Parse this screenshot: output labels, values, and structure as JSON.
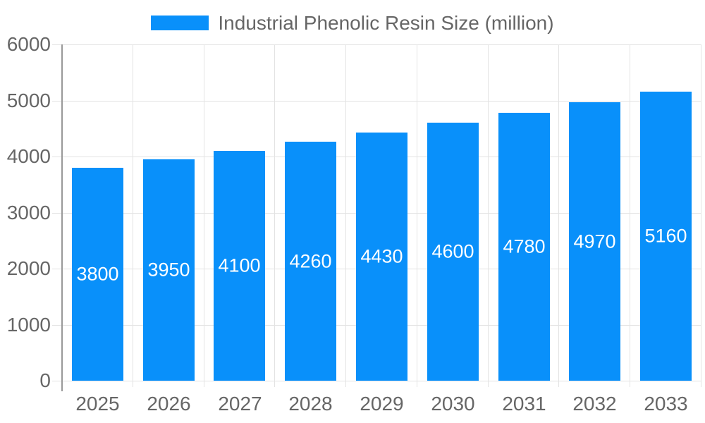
{
  "legend": {
    "label": "Industrial Phenolic Resin Size (million)"
  },
  "colors": {
    "bar": "#0990fa",
    "text": "#666666",
    "grid": "#e3e3e3",
    "axis": "#999999",
    "bar_label": "#ffffff",
    "background": "#ffffff"
  },
  "chart_data": {
    "type": "bar",
    "title": "Industrial Phenolic Resin Size (million)",
    "series_name": "Industrial Phenolic Resin Size (million)",
    "categories": [
      "2025",
      "2026",
      "2027",
      "2028",
      "2029",
      "2030",
      "2031",
      "2032",
      "2033"
    ],
    "values": [
      3800,
      3950,
      4100,
      4260,
      4430,
      4600,
      4780,
      4970,
      5160
    ],
    "xlabel": "",
    "ylabel": "",
    "ylim": [
      0,
      6000
    ],
    "y_ticks": [
      0,
      1000,
      2000,
      3000,
      4000,
      5000,
      6000
    ],
    "grid": true,
    "legend_position": "top",
    "bar_label_position": "center"
  }
}
